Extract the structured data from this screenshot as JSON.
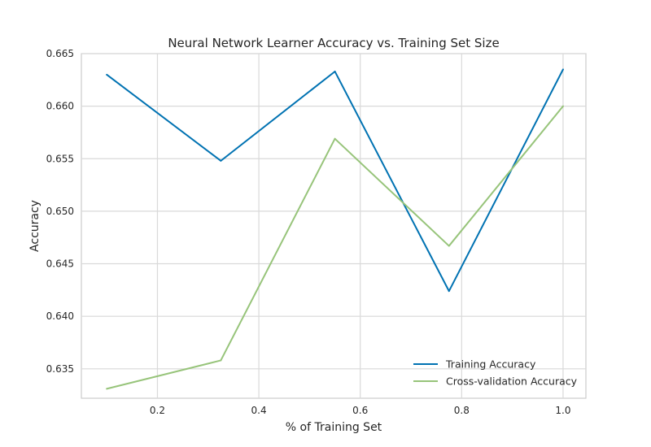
{
  "chart_data": {
    "type": "line",
    "title": "Neural Network Learner Accuracy vs. Training Set Size",
    "xlabel": "% of Training Set",
    "ylabel": "Accuracy",
    "xlim": [
      0.05,
      1.045
    ],
    "ylim": [
      0.6322,
      0.665
    ],
    "xticks": [
      0.2,
      0.4,
      0.6,
      0.8,
      1.0
    ],
    "xtick_labels": [
      "0.2",
      "0.4",
      "0.6",
      "0.8",
      "1.0"
    ],
    "yticks": [
      0.635,
      0.64,
      0.645,
      0.65,
      0.655,
      0.66,
      0.665
    ],
    "ytick_labels": [
      "0.635",
      "0.640",
      "0.645",
      "0.650",
      "0.655",
      "0.660",
      "0.665"
    ],
    "grid": true,
    "legend_position": "bottom-right",
    "x": [
      0.1,
      0.325,
      0.55,
      0.775,
      1.0
    ],
    "series": [
      {
        "name": "Training Accuracy",
        "color": "#0072b2",
        "values": [
          0.663,
          0.6548,
          0.6633,
          0.6424,
          0.6635
        ]
      },
      {
        "name": "Cross-validation Accuracy",
        "color": "#97c47a",
        "values": [
          0.6331,
          0.6358,
          0.6569,
          0.6467,
          0.66
        ]
      }
    ]
  }
}
